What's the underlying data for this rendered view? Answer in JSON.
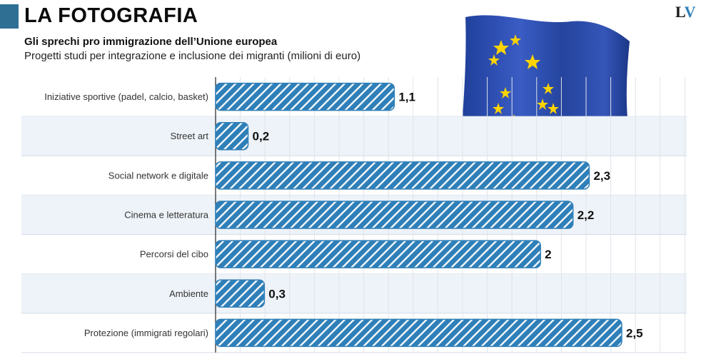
{
  "header": {
    "title": "LA FOTOGRAFIA",
    "logo": "LV"
  },
  "chart_data": {
    "type": "bar",
    "orientation": "horizontal",
    "title": "Gli sprechi pro immigrazione dell’Unione europea",
    "subtitle": "Progetti studi per integrazione e inclusione dei migranti (milioni di euro)",
    "categories": [
      "Iniziative sportive (padel, calcio, basket)",
      "Street art",
      "Social network e digitale",
      "Cinema e letteratura",
      "Percorsi del cibo",
      "Ambiente",
      "Protezione (immigrati regolari)"
    ],
    "values": [
      1.1,
      0.2,
      2.3,
      2.2,
      2,
      0.3,
      2.5
    ],
    "value_labels": [
      "1,1",
      "0,2",
      "2,3",
      "2,2",
      "2",
      "0,3",
      "2,5"
    ],
    "xlim": [
      0,
      2.9
    ],
    "grid": true,
    "bar_color": "#2f7fb8",
    "band_color": "#eef3f9"
  }
}
